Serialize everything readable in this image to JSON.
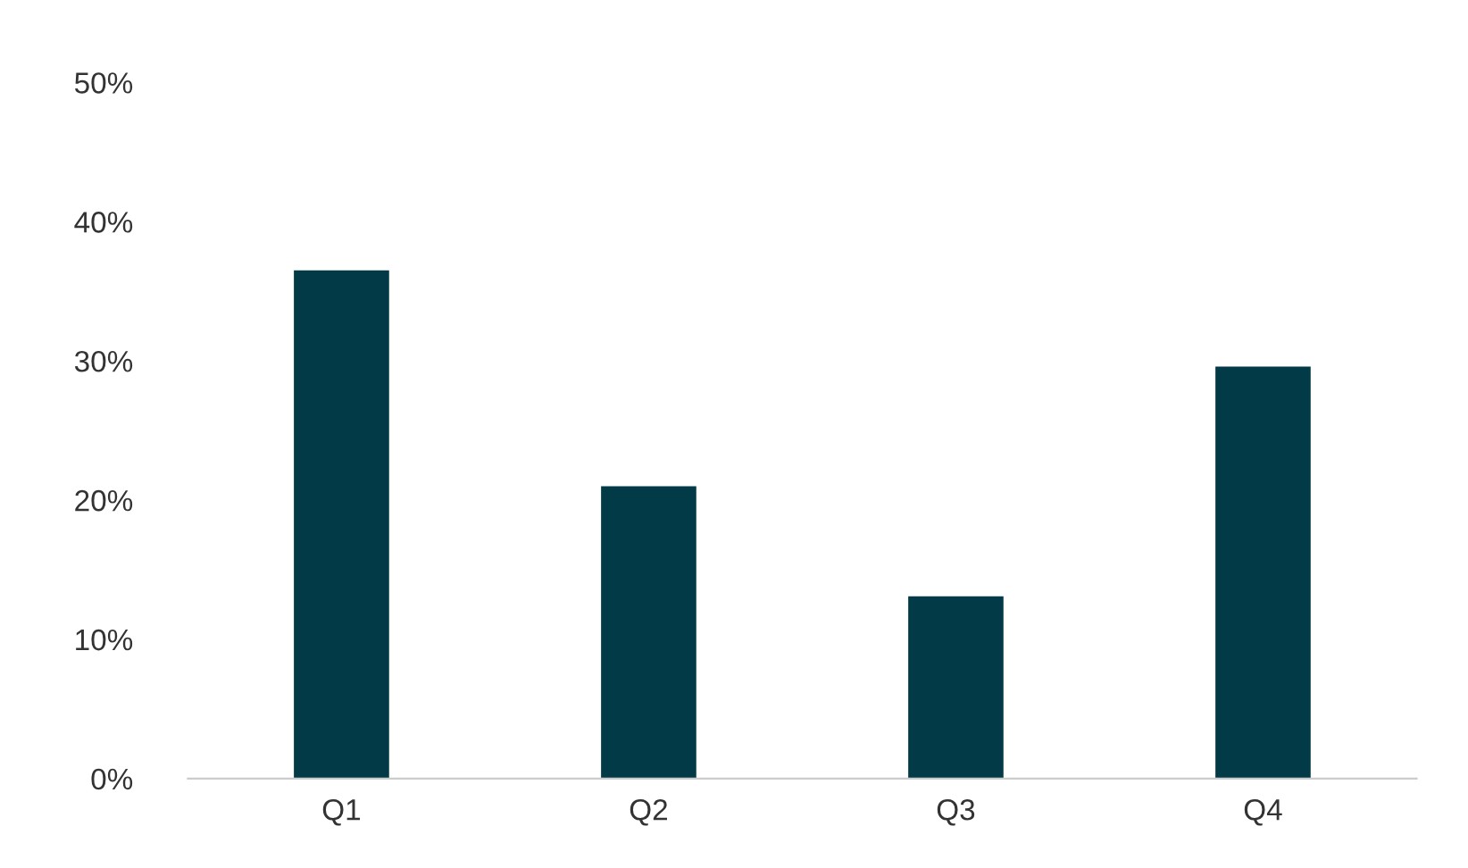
{
  "chart_data": {
    "type": "bar",
    "categories": [
      "Q1",
      "Q2",
      "Q3",
      "Q4"
    ],
    "values": [
      36.5,
      21.0,
      13.1,
      29.6
    ],
    "color": "#023a47",
    "ylim": [
      0,
      50
    ],
    "yticks": [
      {
        "value": 0,
        "label": "0%"
      },
      {
        "value": 10,
        "label": "10%"
      },
      {
        "value": 20,
        "label": "20%"
      },
      {
        "value": 30,
        "label": "30%"
      },
      {
        "value": 40,
        "label": "40%"
      },
      {
        "value": 50,
        "label": "50%"
      }
    ],
    "grid": false
  }
}
